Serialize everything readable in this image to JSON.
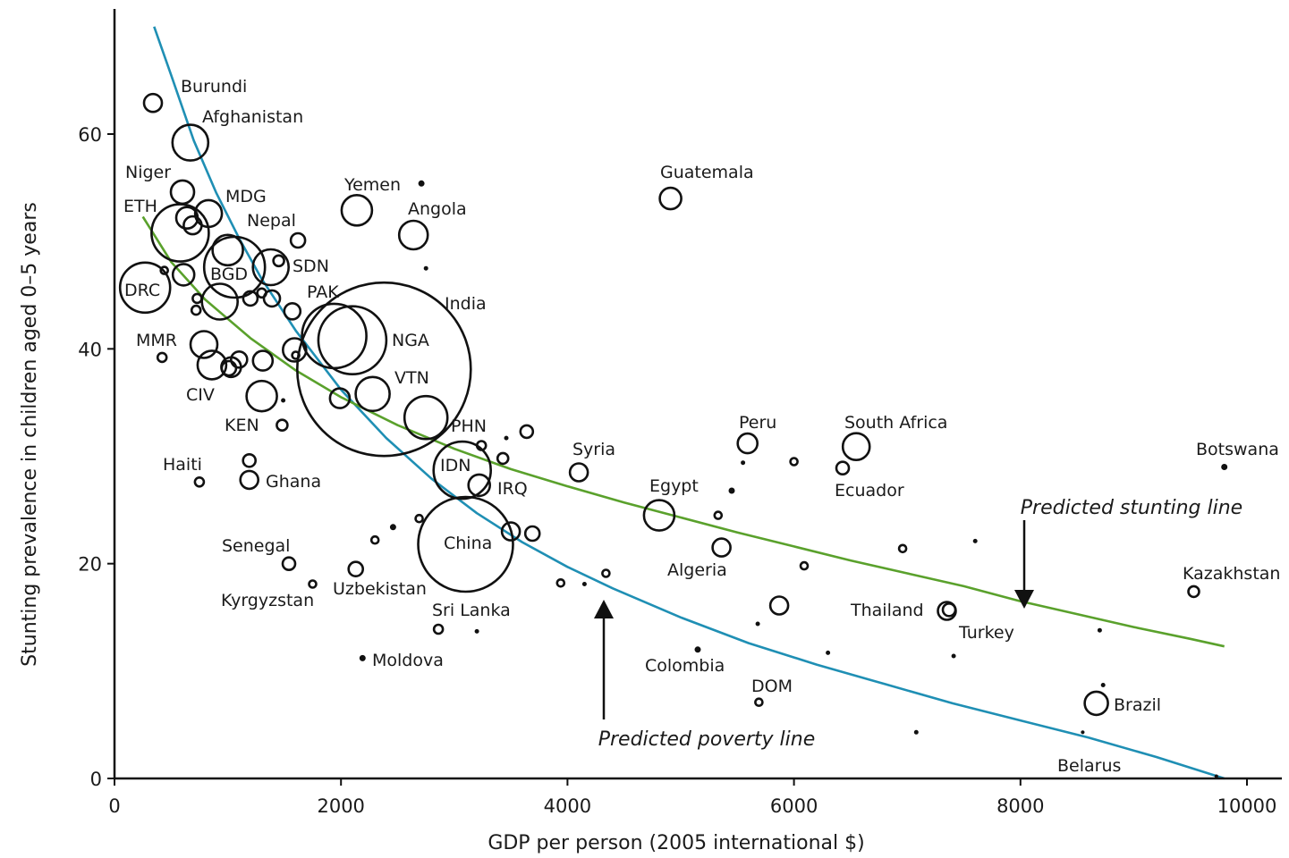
{
  "chart_data": {
    "type": "scatter",
    "xlabel": "GDP per person (2005 international $)",
    "ylabel": "Stunting prevalence in children aged 0–5 years",
    "xlim": [
      0,
      10000
    ],
    "ylim": [
      0,
      70
    ],
    "x_ticks": [
      0,
      2000,
      4000,
      6000,
      8000,
      10000
    ],
    "x_tick_labels": [
      "0",
      "2000",
      "4000",
      "6000",
      "8000",
      "10000"
    ],
    "y_ticks": [
      0,
      20,
      40,
      60
    ],
    "y_tick_labels": [
      "0",
      "20",
      "40",
      "60"
    ],
    "grid": false,
    "points": [
      {
        "label": "Burundi",
        "x": 340,
        "y": 62.9,
        "size": 10
      },
      {
        "label": "Afghanistan",
        "x": 670,
        "y": 59.2,
        "size": 20
      },
      {
        "label": "Niger",
        "x": 600,
        "y": 54.6,
        "size": 13
      },
      {
        "label": "MDG",
        "x": 830,
        "y": 52.6,
        "size": 15
      },
      {
        "label": "ETH",
        "x": 580,
        "y": 50.8,
        "size": 32
      },
      {
        "label": "",
        "x": 640,
        "y": 52.2,
        "size": 12
      },
      {
        "label": "",
        "x": 690,
        "y": 51.5,
        "size": 10
      },
      {
        "label": "Nepal",
        "x": 1000,
        "y": 49.2,
        "size": 17
      },
      {
        "label": "BGD",
        "x": 1060,
        "y": 47.6,
        "size": 34
      },
      {
        "label": "SDN",
        "x": 1380,
        "y": 47.6,
        "size": 20
      },
      {
        "label": "",
        "x": 1450,
        "y": 48.2,
        "size": 6
      },
      {
        "label": "",
        "x": 1620,
        "y": 50.1,
        "size": 8
      },
      {
        "label": "DRC",
        "x": 270,
        "y": 45.7,
        "size": 28
      },
      {
        "label": "",
        "x": 440,
        "y": 47.3,
        "size": 4
      },
      {
        "label": "",
        "x": 610,
        "y": 46.9,
        "size": 12
      },
      {
        "label": "",
        "x": 930,
        "y": 44.4,
        "size": 20
      },
      {
        "label": "",
        "x": 730,
        "y": 44.7,
        "size": 5
      },
      {
        "label": "",
        "x": 720,
        "y": 43.6,
        "size": 5
      },
      {
        "label": "",
        "x": 1200,
        "y": 44.7,
        "size": 8
      },
      {
        "label": "PAK",
        "x": 1390,
        "y": 44.7,
        "size": 9
      },
      {
        "label": "",
        "x": 1300,
        "y": 45.2,
        "size": 5
      },
      {
        "label": "",
        "x": 1570,
        "y": 43.5,
        "size": 9
      },
      {
        "label": "MMR",
        "x": 790,
        "y": 40.4,
        "size": 15
      },
      {
        "label": "",
        "x": 420,
        "y": 39.2,
        "size": 5
      },
      {
        "label": "",
        "x": 1100,
        "y": 39.0,
        "size": 9
      },
      {
        "label": "",
        "x": 1310,
        "y": 38.9,
        "size": 11
      },
      {
        "label": "",
        "x": 1590,
        "y": 39.9,
        "size": 13
      },
      {
        "label": "",
        "x": 1600,
        "y": 39.4,
        "size": 4
      },
      {
        "label": "CIV",
        "x": 860,
        "y": 38.5,
        "size": 16
      },
      {
        "label": "",
        "x": 1030,
        "y": 38.3,
        "size": 11
      },
      {
        "label": "",
        "x": 1010,
        "y": 38.2,
        "size": 8
      },
      {
        "label": "India",
        "x": 2380,
        "y": 38.1,
        "size": 97
      },
      {
        "label": "NGA",
        "x": 1940,
        "y": 41.2,
        "size": 36
      },
      {
        "label": "",
        "x": 2100,
        "y": 40.8,
        "size": 38
      },
      {
        "label": "VTN",
        "x": 2280,
        "y": 35.8,
        "size": 19
      },
      {
        "label": "",
        "x": 1990,
        "y": 35.4,
        "size": 11
      },
      {
        "label": "KEN",
        "x": 1300,
        "y": 35.6,
        "size": 17
      },
      {
        "label": "",
        "x": 1490,
        "y": 35.2,
        "size": 2
      },
      {
        "label": "",
        "x": 1480,
        "y": 32.9,
        "size": 6
      },
      {
        "label": "PHN",
        "x": 2750,
        "y": 33.6,
        "size": 24
      },
      {
        "label": "",
        "x": 3640,
        "y": 32.3,
        "size": 7
      },
      {
        "label": "",
        "x": 3460,
        "y": 31.7,
        "size": 2
      },
      {
        "label": "",
        "x": 3240,
        "y": 31.0,
        "size": 5
      },
      {
        "label": "",
        "x": 3430,
        "y": 29.8,
        "size": 6
      },
      {
        "label": "IDN",
        "x": 3070,
        "y": 28.7,
        "size": 32
      },
      {
        "label": "IRQ",
        "x": 3220,
        "y": 27.3,
        "size": 12
      },
      {
        "label": "Haiti",
        "x": 750,
        "y": 27.6,
        "size": 5
      },
      {
        "label": "",
        "x": 1190,
        "y": 29.6,
        "size": 7
      },
      {
        "label": "Ghana",
        "x": 1190,
        "y": 27.8,
        "size": 10
      },
      {
        "label": "Syria",
        "x": 4100,
        "y": 28.5,
        "size": 10
      },
      {
        "label": "Egypt",
        "x": 4810,
        "y": 24.5,
        "size": 17
      },
      {
        "label": "China",
        "x": 3100,
        "y": 21.8,
        "size": 53
      },
      {
        "label": "",
        "x": 3500,
        "y": 23.0,
        "size": 10
      },
      {
        "label": "",
        "x": 3690,
        "y": 22.8,
        "size": 8
      },
      {
        "label": "",
        "x": 2690,
        "y": 24.2,
        "size": 4
      },
      {
        "label": "",
        "x": 2460,
        "y": 23.4,
        "size": 3
      },
      {
        "label": "",
        "x": 2300,
        "y": 22.2,
        "size": 4
      },
      {
        "label": "Senegal",
        "x": 1540,
        "y": 20.0,
        "size": 7
      },
      {
        "label": "Uzbekistan",
        "x": 2130,
        "y": 19.5,
        "size": 8
      },
      {
        "label": "Kyrgyzstan",
        "x": 1750,
        "y": 18.1,
        "size": 4
      },
      {
        "label": "",
        "x": 3940,
        "y": 18.2,
        "size": 4
      },
      {
        "label": "",
        "x": 4150,
        "y": 18.1,
        "size": 2
      },
      {
        "label": "",
        "x": 4340,
        "y": 19.1,
        "size": 4
      },
      {
        "label": "Sri Lanka",
        "x": 2860,
        "y": 13.9,
        "size": 5
      },
      {
        "label": "",
        "x": 3200,
        "y": 13.7,
        "size": 2
      },
      {
        "label": "Moldova",
        "x": 2190,
        "y": 11.2,
        "size": 3
      },
      {
        "label": "Guatemala",
        "x": 4910,
        "y": 54.0,
        "size": 12
      },
      {
        "label": "Yemen",
        "x": 2140,
        "y": 52.9,
        "size": 17
      },
      {
        "label": "",
        "x": 2710,
        "y": 55.4,
        "size": 3
      },
      {
        "label": "Angola",
        "x": 2640,
        "y": 50.6,
        "size": 16
      },
      {
        "label": "",
        "x": 2750,
        "y": 47.5,
        "size": 2
      },
      {
        "label": "Peru",
        "x": 5590,
        "y": 31.2,
        "size": 11
      },
      {
        "label": "",
        "x": 5550,
        "y": 29.4,
        "size": 2
      },
      {
        "label": "South Africa",
        "x": 6550,
        "y": 30.9,
        "size": 15
      },
      {
        "label": "",
        "x": 6000,
        "y": 29.5,
        "size": 4
      },
      {
        "label": "Ecuador",
        "x": 6430,
        "y": 28.9,
        "size": 7
      },
      {
        "label": "",
        "x": 5450,
        "y": 26.8,
        "size": 3
      },
      {
        "label": "",
        "x": 5330,
        "y": 24.5,
        "size": 4
      },
      {
        "label": "Algeria",
        "x": 5360,
        "y": 21.5,
        "size": 10
      },
      {
        "label": "",
        "x": 6090,
        "y": 19.8,
        "size": 4
      },
      {
        "label": "",
        "x": 6960,
        "y": 21.4,
        "size": 4
      },
      {
        "label": "",
        "x": 7600,
        "y": 22.1,
        "size": 2
      },
      {
        "label": "",
        "x": 5870,
        "y": 16.1,
        "size": 10
      },
      {
        "label": "",
        "x": 5680,
        "y": 14.4,
        "size": 2
      },
      {
        "label": "Thailand",
        "x": 7350,
        "y": 15.6,
        "size": 10
      },
      {
        "label": "",
        "x": 7370,
        "y": 15.7,
        "size": 7
      },
      {
        "label": "Turkey",
        "x": 7410,
        "y": 11.4,
        "size": 2
      },
      {
        "label": "Colombia",
        "x": 5150,
        "y": 12.0,
        "size": 3
      },
      {
        "label": "",
        "x": 6300,
        "y": 11.7,
        "size": 2
      },
      {
        "label": "DOM",
        "x": 5690,
        "y": 7.1,
        "size": 4
      },
      {
        "label": "",
        "x": 7080,
        "y": 4.3,
        "size": 2
      },
      {
        "label": "Botswana",
        "x": 9800,
        "y": 29.0,
        "size": 3
      },
      {
        "label": "Kazakhstan",
        "x": 9530,
        "y": 17.4,
        "size": 6
      },
      {
        "label": "",
        "x": 8700,
        "y": 13.8,
        "size": 2
      },
      {
        "label": "",
        "x": 8730,
        "y": 8.7,
        "size": 2
      },
      {
        "label": "Brazil",
        "x": 8670,
        "y": 7.0,
        "size": 13
      },
      {
        "label": "",
        "x": 8550,
        "y": 4.3,
        "size": 1
      },
      {
        "label": "Belarus",
        "x": 9730,
        "y": 0.2,
        "size": 1
      }
    ],
    "curves": [
      {
        "name": "Predicted poverty line",
        "color": "#1f8fb4",
        "x": [
          350,
          500,
          700,
          900,
          1100,
          1300,
          1600,
          2000,
          2400,
          2800,
          3200,
          3600,
          4000,
          4400,
          5000,
          5600,
          6200,
          6800,
          7400,
          8000,
          8600,
          9200,
          9800
        ],
        "y": [
          70.0,
          65.5,
          59.4,
          54.5,
          50.3,
          46.5,
          41.7,
          36.2,
          31.7,
          27.9,
          24.7,
          22.0,
          19.7,
          17.7,
          15.0,
          12.6,
          10.6,
          8.8,
          7.0,
          5.4,
          3.8,
          2.0,
          0.0
        ]
      },
      {
        "name": "Predicted stunting line",
        "color": "#5aa12c",
        "x": [
          250,
          500,
          800,
          1200,
          1600,
          2000,
          2500,
          3000,
          3500,
          4000,
          4500,
          5000,
          5500,
          6000,
          6500,
          7000,
          7500,
          8000,
          8500,
          9000,
          9500,
          9800
        ],
        "y": [
          52.3,
          48.1,
          44.6,
          41.0,
          38.0,
          35.5,
          32.9,
          30.7,
          28.8,
          27.2,
          25.7,
          24.3,
          22.9,
          21.6,
          20.3,
          19.1,
          17.9,
          16.5,
          15.3,
          14.1,
          13.0,
          12.3
        ]
      }
    ],
    "annotations": [
      {
        "text": "Predicted stunting line",
        "arrow": "down"
      },
      {
        "text": "Predicted poverty line",
        "arrow": "up"
      }
    ]
  }
}
